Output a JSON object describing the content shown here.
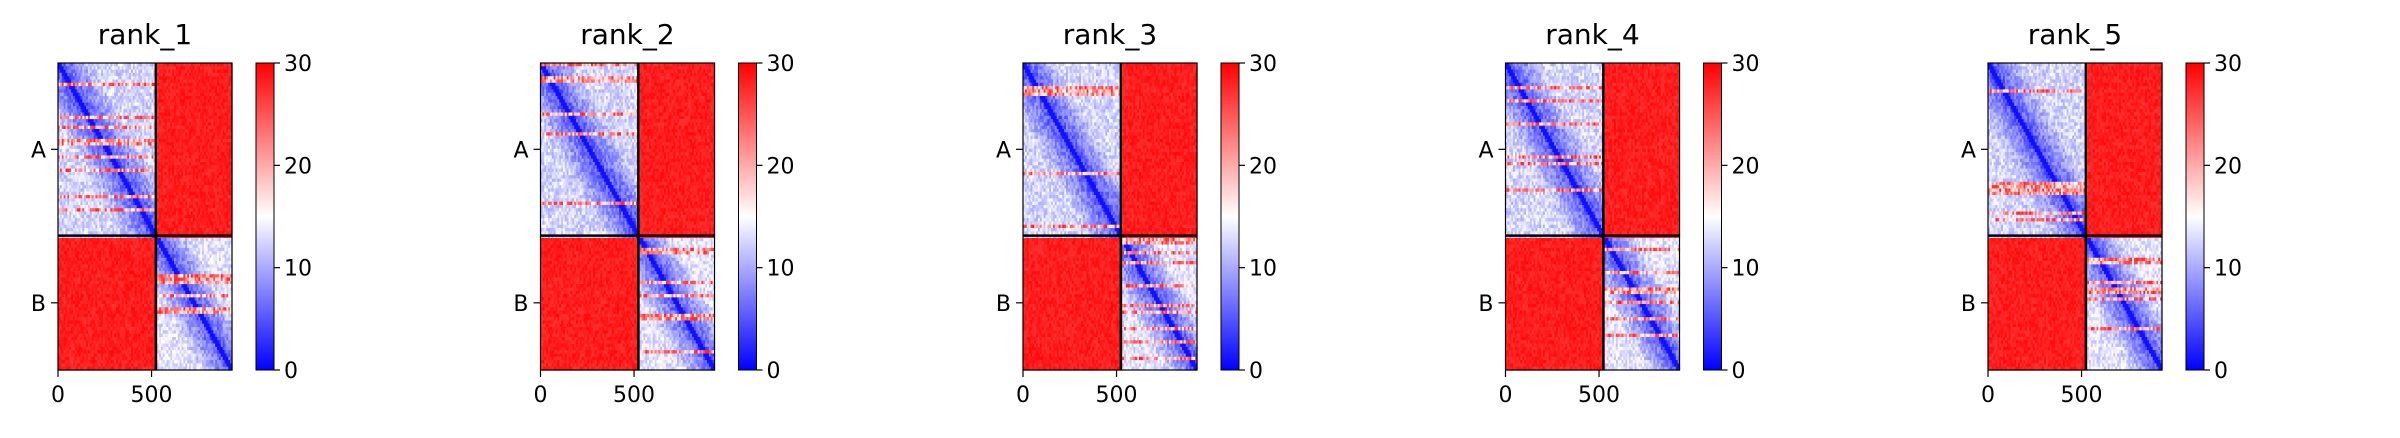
{
  "chart_data": [
    {
      "type": "heatmap",
      "title": "rank_1",
      "chains": [
        {
          "label": "A",
          "start": 0,
          "end": 523
        },
        {
          "label": "B",
          "start": 523,
          "end": 930
        }
      ],
      "x_ticks": [
        0,
        500
      ],
      "xlim": [
        0,
        930
      ],
      "y_ticks": [
        "A",
        "B"
      ],
      "colorbar": {
        "ticks": [
          0,
          10,
          20,
          30
        ],
        "vmin": 0,
        "vmax": 30,
        "colormap": "bwr"
      },
      "block_means": {
        "intra_A": 8,
        "intra_B": 9,
        "inter_chain": 29.5
      },
      "grid": false
    },
    {
      "type": "heatmap",
      "title": "rank_2",
      "chains": [
        {
          "label": "A",
          "start": 0,
          "end": 523
        },
        {
          "label": "B",
          "start": 523,
          "end": 930
        }
      ],
      "x_ticks": [
        0,
        500
      ],
      "xlim": [
        0,
        930
      ],
      "y_ticks": [
        "A",
        "B"
      ],
      "colorbar": {
        "ticks": [
          0,
          10,
          20,
          30
        ],
        "vmin": 0,
        "vmax": 30,
        "colormap": "bwr"
      },
      "block_means": {
        "intra_A": 8,
        "intra_B": 9,
        "inter_chain": 29.5
      },
      "grid": false
    },
    {
      "type": "heatmap",
      "title": "rank_3",
      "chains": [
        {
          "label": "A",
          "start": 0,
          "end": 523
        },
        {
          "label": "B",
          "start": 523,
          "end": 930
        }
      ],
      "x_ticks": [
        0,
        500
      ],
      "xlim": [
        0,
        930
      ],
      "y_ticks": [
        "A",
        "B"
      ],
      "colorbar": {
        "ticks": [
          0,
          10,
          20,
          30
        ],
        "vmin": 0,
        "vmax": 30,
        "colormap": "bwr"
      },
      "block_means": {
        "intra_A": 8,
        "intra_B": 9,
        "inter_chain": 29.5
      },
      "grid": false
    },
    {
      "type": "heatmap",
      "title": "rank_4",
      "chains": [
        {
          "label": "A",
          "start": 0,
          "end": 523
        },
        {
          "label": "B",
          "start": 523,
          "end": 930
        }
      ],
      "x_ticks": [
        0,
        500
      ],
      "xlim": [
        0,
        930
      ],
      "y_ticks": [
        "A",
        "B"
      ],
      "colorbar": {
        "ticks": [
          0,
          10,
          20,
          30
        ],
        "vmin": 0,
        "vmax": 30,
        "colormap": "bwr"
      },
      "block_means": {
        "intra_A": 8,
        "intra_B": 9,
        "inter_chain": 29.5
      },
      "grid": false
    },
    {
      "type": "heatmap",
      "title": "rank_5",
      "chains": [
        {
          "label": "A",
          "start": 0,
          "end": 523
        },
        {
          "label": "B",
          "start": 523,
          "end": 930
        }
      ],
      "x_ticks": [
        0,
        500
      ],
      "xlim": [
        0,
        930
      ],
      "y_ticks": [
        "A",
        "B"
      ],
      "colorbar": {
        "ticks": [
          0,
          10,
          20,
          30
        ],
        "vmin": 0,
        "vmax": 30,
        "colormap": "bwr"
      },
      "block_means": {
        "intra_A": 8,
        "intra_B": 9,
        "inter_chain": 29.5
      },
      "grid": false
    }
  ]
}
